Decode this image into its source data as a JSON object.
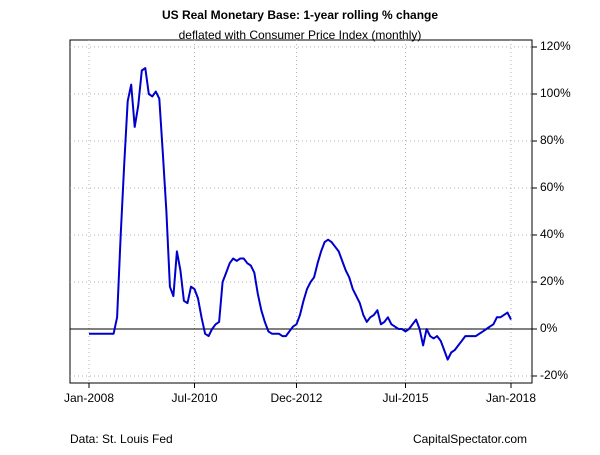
{
  "chart_data": {
    "type": "line",
    "title": "US Real Monetary Base: 1-year rolling % change",
    "subtitle": "deflated with Consumer Price Index (monthly)",
    "source": "Data: St. Louis Fed",
    "credit": "CapitalSpectator.com",
    "categories": [
      "Jan-2008",
      "Feb-2008",
      "Mar-2008",
      "Apr-2008",
      "May-2008",
      "Jun-2008",
      "Jul-2008",
      "Aug-2008",
      "Sep-2008",
      "Oct-2008",
      "Nov-2008",
      "Dec-2008",
      "Jan-2009",
      "Feb-2009",
      "Mar-2009",
      "Apr-2009",
      "May-2009",
      "Jun-2009",
      "Jul-2009",
      "Aug-2009",
      "Sep-2009",
      "Oct-2009",
      "Nov-2009",
      "Dec-2009",
      "Jan-2010",
      "Feb-2010",
      "Mar-2010",
      "Apr-2010",
      "May-2010",
      "Jun-2010",
      "Jul-2010",
      "Aug-2010",
      "Sep-2010",
      "Oct-2010",
      "Nov-2010",
      "Dec-2010",
      "Jan-2011",
      "Feb-2011",
      "Mar-2011",
      "Apr-2011",
      "May-2011",
      "Jun-2011",
      "Jul-2011",
      "Aug-2011",
      "Sep-2011",
      "Oct-2011",
      "Nov-2011",
      "Dec-2011",
      "Jan-2012",
      "Feb-2012",
      "Mar-2012",
      "Apr-2012",
      "May-2012",
      "Jun-2012",
      "Jul-2012",
      "Aug-2012",
      "Sep-2012",
      "Oct-2012",
      "Nov-2012",
      "Dec-2012",
      "Jan-2013",
      "Feb-2013",
      "Mar-2013",
      "Apr-2013",
      "May-2013",
      "Jun-2013",
      "Jul-2013",
      "Aug-2013",
      "Sep-2013",
      "Oct-2013",
      "Nov-2013",
      "Dec-2013",
      "Jan-2014",
      "Feb-2014",
      "Mar-2014",
      "Apr-2014",
      "May-2014",
      "Jun-2014",
      "Jul-2014",
      "Aug-2014",
      "Sep-2014",
      "Oct-2014",
      "Nov-2014",
      "Dec-2014",
      "Jan-2015",
      "Feb-2015",
      "Mar-2015",
      "Apr-2015",
      "May-2015",
      "Jun-2015",
      "Jul-2015",
      "Aug-2015",
      "Sep-2015",
      "Oct-2015",
      "Nov-2015",
      "Dec-2015",
      "Jan-2016",
      "Feb-2016",
      "Mar-2016",
      "Apr-2016",
      "May-2016",
      "Jun-2016",
      "Jul-2016",
      "Aug-2016",
      "Sep-2016",
      "Oct-2016",
      "Nov-2016",
      "Dec-2016",
      "Jan-2017",
      "Feb-2017",
      "Mar-2017",
      "Apr-2017",
      "May-2017",
      "Jun-2017",
      "Jul-2017",
      "Aug-2017",
      "Sep-2017",
      "Oct-2017",
      "Nov-2017",
      "Dec-2017",
      "Jan-2018"
    ],
    "values": [
      -2,
      -2,
      -2,
      -2,
      -2,
      -2,
      -2,
      -2,
      5,
      40,
      70,
      97,
      104,
      86,
      95,
      110,
      111,
      100,
      99,
      101,
      98,
      75,
      50,
      18,
      14,
      33,
      25,
      12,
      11,
      18,
      17,
      13,
      5,
      -2,
      -3,
      0,
      2,
      3,
      20,
      24,
      28,
      30,
      29,
      30,
      30,
      28,
      27,
      24,
      15,
      8,
      3,
      -1,
      -2,
      -2,
      -2,
      -3,
      -3,
      -1,
      1,
      2,
      6,
      12,
      17,
      20,
      22,
      28,
      33,
      37,
      38,
      37,
      35,
      33,
      29,
      25,
      22,
      17,
      14,
      11,
      6,
      3,
      5,
      6,
      8,
      2,
      3,
      5,
      2,
      1,
      0,
      0,
      -1,
      0,
      2,
      4,
      0,
      -7,
      0,
      -3,
      -4,
      -3,
      -5,
      -9,
      -13,
      -10,
      -9,
      -7,
      -5,
      -3,
      -3,
      -3,
      -3,
      -2,
      -1,
      0,
      1,
      2,
      5,
      5,
      6,
      7,
      4
    ],
    "color": "#0000cd",
    "xticks": [
      "Jan-2008",
      "Jul-2010",
      "Dec-2012",
      "Jul-2015",
      "Jan-2018"
    ],
    "ylim": [
      -20,
      120
    ],
    "yticks": [
      {
        "value": -20,
        "label": "-20%"
      },
      {
        "value": 0,
        "label": "0%"
      },
      {
        "value": 20,
        "label": "20%"
      },
      {
        "value": 40,
        "label": "40%"
      },
      {
        "value": 60,
        "label": "60%"
      },
      {
        "value": 80,
        "label": "80%"
      },
      {
        "value": 100,
        "label": "100%"
      },
      {
        "value": 120,
        "label": "120%"
      }
    ],
    "grid": true
  }
}
